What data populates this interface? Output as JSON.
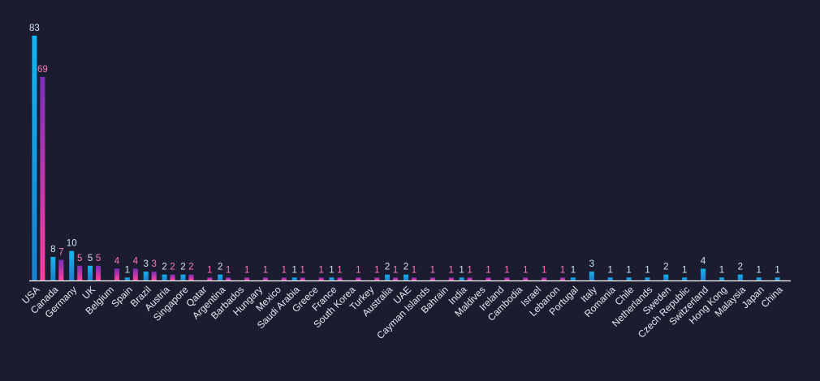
{
  "chart_data": {
    "type": "bar",
    "categories": [
      "USA",
      "Canada",
      "Germany",
      "UK",
      "Belgium",
      "Spain",
      "Brazil",
      "Austria",
      "Singapore",
      "Qatar",
      "Argentina",
      "Barbados",
      "Hungary",
      "Mexico",
      "Saudi Arabia",
      "Greece",
      "France",
      "South Korea",
      "Turkey",
      "Australia",
      "UAE",
      "Cayman Islands",
      "Bahrain",
      "India",
      "Maldives",
      "Ireland",
      "Cambodia",
      "Israel",
      "Lebanon",
      "Portugal",
      "Italy",
      "Romania",
      "Chile",
      "Netherlands",
      "Sweden",
      "Czech Republic",
      "Switzerland",
      "Hong Kong",
      "Malaysia",
      "Japan",
      "China"
    ],
    "series": [
      {
        "color": "#1a9ae0",
        "label_color": "#cfe3f5",
        "values": [
          83,
          8,
          10,
          5,
          null,
          1,
          3,
          2,
          2,
          null,
          2,
          null,
          null,
          null,
          1,
          null,
          1,
          null,
          null,
          2,
          2,
          null,
          null,
          1,
          null,
          null,
          null,
          null,
          null,
          1,
          3,
          1,
          1,
          1,
          2,
          1,
          4,
          1,
          2,
          1,
          1
        ]
      },
      {
        "color": "#a02fb0",
        "label_color": "#ff7ab0",
        "values": [
          69,
          7,
          5,
          5,
          4,
          4,
          3,
          2,
          2,
          1,
          1,
          1,
          1,
          1,
          1,
          1,
          1,
          1,
          1,
          1,
          1,
          1,
          1,
          1,
          1,
          1,
          1,
          1,
          1,
          null,
          null,
          null,
          null,
          null,
          null,
          null,
          null,
          null,
          null,
          null,
          null
        ]
      }
    ],
    "ylim": [
      0,
      83
    ],
    "grid": false,
    "legend": "none",
    "background": "#1c1c30",
    "axis_color": "#ffffff"
  }
}
